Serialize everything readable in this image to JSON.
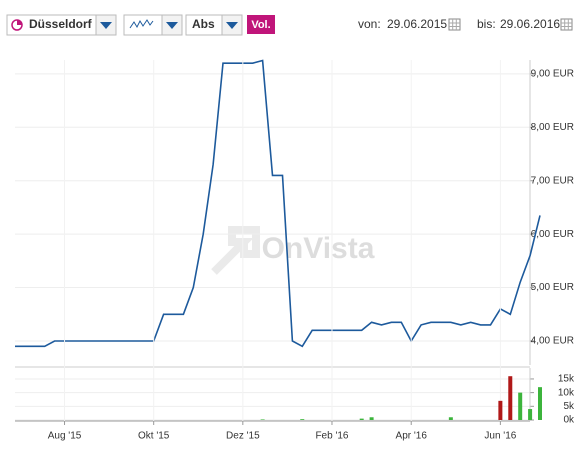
{
  "toolbar": {
    "exchange": "Düsseldorf",
    "mode": "Abs",
    "volume": "Vol.",
    "from_label": "von:",
    "from": "29.06.2015",
    "to_label": "bis:",
    "to": "29.06.2016"
  },
  "chart_data": [
    {
      "type": "line",
      "watermark": "OnVista",
      "color": "#1d5a9c",
      "grid": true,
      "categories": [
        null,
        null,
        null,
        null,
        null,
        null,
        null,
        null,
        null,
        null,
        null,
        null,
        null,
        null,
        null,
        null,
        null,
        null,
        null,
        null,
        null,
        null,
        null,
        null,
        null,
        null,
        null,
        null,
        null,
        null,
        null,
        null,
        null,
        null,
        null,
        null,
        null,
        null,
        null,
        null,
        null,
        null,
        null,
        null,
        null,
        null,
        null,
        null,
        null,
        null,
        null,
        null,
        null,
        null
      ],
      "values": [
        3.9,
        3.9,
        3.9,
        3.9,
        4.0,
        4.0,
        4.0,
        4.0,
        4.0,
        4.0,
        4.0,
        4.0,
        4.0,
        4.0,
        4.0,
        4.5,
        4.5,
        4.5,
        5.0,
        6.0,
        7.3,
        9.2,
        9.2,
        9.2,
        9.2,
        9.25,
        7.1,
        7.1,
        4.0,
        3.9,
        4.2,
        4.2,
        4.2,
        4.2,
        4.2,
        4.2,
        4.35,
        4.3,
        4.35,
        4.35,
        4.0,
        4.3,
        4.35,
        4.35,
        4.35,
        4.3,
        4.35,
        4.3,
        4.3,
        4.6,
        4.5,
        5.1,
        5.6,
        6.35
      ],
      "ylim": [
        3.55,
        9.26
      ],
      "yticks": [
        {
          "value": 4,
          "label": "4,00 EUR"
        },
        {
          "value": 5,
          "label": "5,00 EUR"
        },
        {
          "value": 6,
          "label": "6,00 EUR"
        },
        {
          "value": 7,
          "label": "7,00 EUR"
        },
        {
          "value": 8,
          "label": "8,00 EUR"
        },
        {
          "value": 9,
          "label": "9,00 EUR"
        }
      ]
    },
    {
      "type": "bar",
      "grid": true,
      "categories": [
        null,
        null,
        null,
        null,
        null,
        "Aug '15",
        null,
        null,
        null,
        null,
        null,
        null,
        null,
        null,
        "Okt '15",
        null,
        null,
        null,
        null,
        null,
        null,
        null,
        null,
        "Dez '15",
        null,
        null,
        null,
        null,
        null,
        null,
        null,
        null,
        "Feb '16",
        null,
        null,
        null,
        null,
        null,
        null,
        null,
        "Apr '16",
        null,
        null,
        null,
        null,
        null,
        null,
        null,
        null,
        "Jun '16",
        null,
        null,
        null,
        null
      ],
      "values": [
        null,
        null,
        null,
        null,
        null,
        null,
        null,
        null,
        null,
        null,
        null,
        null,
        null,
        null,
        null,
        null,
        null,
        null,
        null,
        null,
        null,
        null,
        null,
        null,
        null,
        200,
        null,
        null,
        null,
        300,
        null,
        null,
        null,
        null,
        null,
        500,
        1000,
        null,
        null,
        null,
        null,
        null,
        null,
        null,
        1000,
        null,
        null,
        null,
        null,
        7000,
        16000,
        10000,
        4000,
        12000
      ],
      "bar_colors": [
        null,
        null,
        null,
        null,
        null,
        null,
        null,
        null,
        null,
        null,
        null,
        null,
        null,
        null,
        null,
        null,
        null,
        null,
        null,
        null,
        null,
        null,
        null,
        null,
        null,
        "#3cb43c",
        null,
        null,
        null,
        "#3cb43c",
        null,
        null,
        null,
        null,
        null,
        "#3cb43c",
        "#3cb43c",
        null,
        null,
        null,
        null,
        null,
        null,
        null,
        "#3cb43c",
        null,
        null,
        null,
        null,
        "#b01818",
        "#b01818",
        "#3cb43c",
        "#3cb43c",
        "#3cb43c"
      ],
      "ylim": [
        0,
        19000
      ],
      "yticks": [
        {
          "value": 0,
          "label": "0k"
        },
        {
          "value": 5000,
          "label": "5k"
        },
        {
          "value": 10000,
          "label": "10k"
        },
        {
          "value": 15000,
          "label": "15k"
        }
      ]
    }
  ]
}
